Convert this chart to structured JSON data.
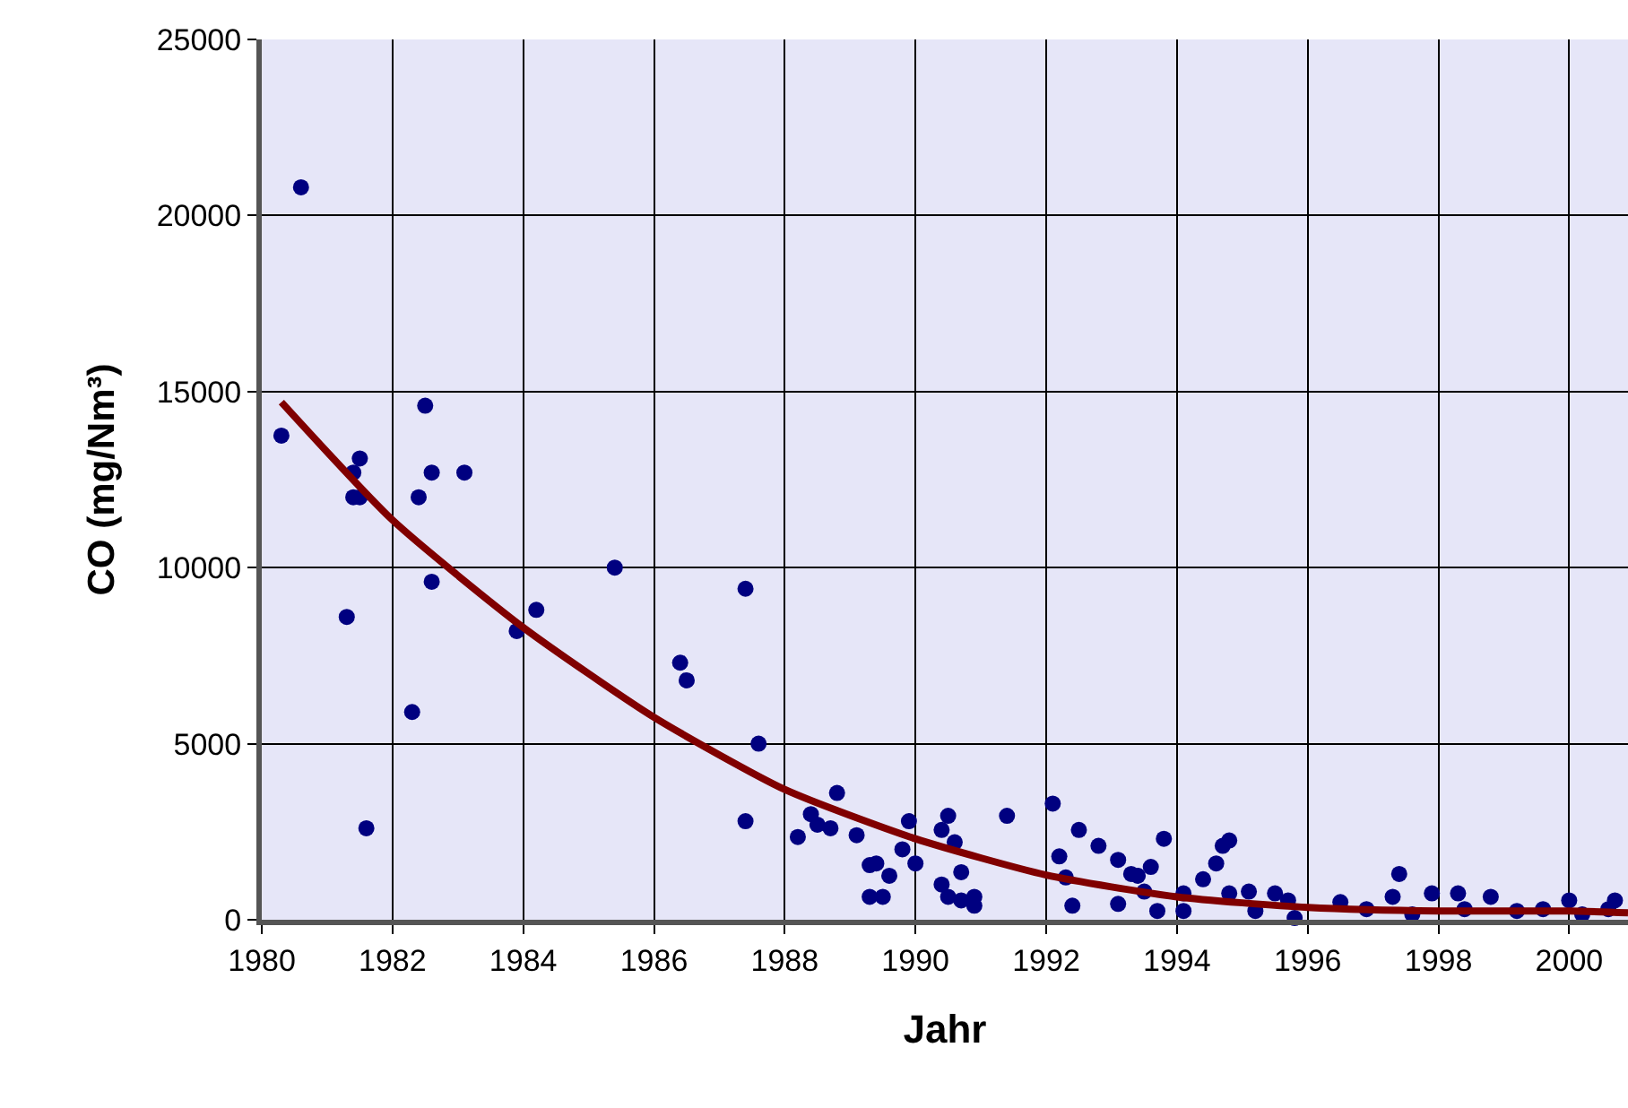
{
  "chart_data": {
    "type": "scatter",
    "xlabel": "Jahr",
    "ylabel": "CO (mg/Nm³)",
    "xlim": [
      1980,
      2000.9
    ],
    "xticks": [
      1980,
      1982,
      1984,
      1986,
      1988,
      1990,
      1992,
      1994,
      1996,
      1998,
      2000
    ],
    "ylim": [
      0,
      25000
    ],
    "yticks": [
      0,
      5000,
      10000,
      15000,
      20000,
      25000
    ],
    "grid": true,
    "legend": false,
    "marker": "circle",
    "series": [
      {
        "color": "#000080",
        "x": [
          1980.3,
          1980.6,
          1981.5,
          1981.4,
          1981.4,
          1981.5,
          1981.3,
          1981.6,
          1982.3,
          1982.4,
          1982.5,
          1982.6,
          1982.6,
          1983.1,
          1983.9,
          1984.2,
          1985.4,
          1986.4,
          1986.5,
          1987.4,
          1987.4,
          1987.6,
          1988.2,
          1988.4,
          1988.5,
          1988.7,
          1988.8,
          1989.1,
          1989.3,
          1989.4,
          1989.6,
          1989.3,
          1989.5,
          1989.8,
          1989.9,
          1990.0,
          1990.4,
          1990.5,
          1990.6,
          1990.7,
          1990.4,
          1990.5,
          1990.7,
          1990.9,
          1990.9,
          1991.4,
          1992.1,
          1992.2,
          1992.3,
          1992.4,
          1992.5,
          1992.8,
          1993.1,
          1993.1,
          1993.3,
          1993.5,
          1993.4,
          1993.6,
          1993.8,
          1993.7,
          1994.1,
          1994.1,
          1994.4,
          1994.6,
          1994.7,
          1994.8,
          1994.8,
          1995.1,
          1995.2,
          1995.5,
          1995.7,
          1995.8,
          1996.5,
          1996.9,
          1997.3,
          1997.4,
          1997.6,
          1997.9,
          1998.3,
          1998.4,
          1998.8,
          1999.2,
          1999.6,
          2000.0,
          2000.2,
          2000.6,
          2000.7
        ],
        "values": [
          13750,
          20800,
          13100,
          12700,
          12000,
          12000,
          8600,
          2600,
          5900,
          12000,
          14600,
          12700,
          9600,
          12700,
          8200,
          8800,
          10000,
          7300,
          6800,
          9400,
          2800,
          5000,
          2350,
          3000,
          2700,
          2600,
          3600,
          2400,
          1550,
          1600,
          1250,
          650,
          650,
          2000,
          2800,
          1600,
          2550,
          2950,
          2200,
          1350,
          1000,
          650,
          550,
          650,
          400,
          2950,
          3300,
          1800,
          1200,
          400,
          2550,
          2100,
          450,
          1700,
          1300,
          800,
          1250,
          1500,
          2300,
          250,
          250,
          750,
          1150,
          1600,
          2100,
          2250,
          750,
          800,
          250,
          750,
          550,
          50,
          500,
          300,
          650,
          1300,
          150,
          750,
          750,
          300,
          650,
          250,
          300,
          550,
          150,
          300,
          550
        ]
      },
      {
        "type": "line",
        "marker": "none",
        "color": "#800000",
        "x": [
          1980.3,
          1982,
          1984,
          1986,
          1988,
          1990,
          1992,
          1994,
          1996,
          1998,
          2000,
          2000.9
        ],
        "values": [
          14700,
          11350,
          8300,
          5750,
          3700,
          2300,
          1270,
          650,
          350,
          250,
          250,
          200
        ]
      }
    ]
  }
}
